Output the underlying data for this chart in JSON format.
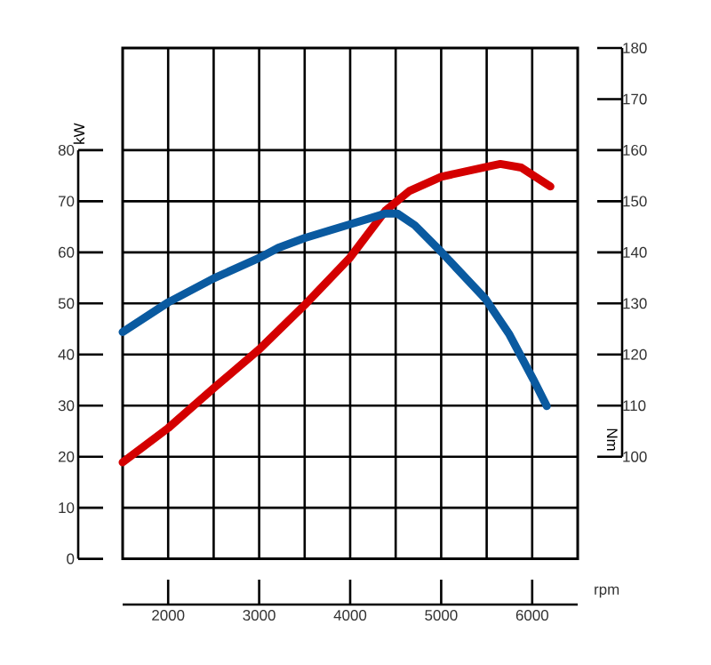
{
  "chart_data": {
    "type": "line",
    "xlabel": "rpm",
    "ylabel": "kW",
    "y2label": "Nm",
    "xlim": [
      1500,
      6500
    ],
    "xticks": [
      2000,
      3000,
      4000,
      5000,
      6000
    ],
    "ylim": [
      0,
      100
    ],
    "yticks": [
      0,
      10,
      20,
      30,
      40,
      50,
      60,
      70,
      80
    ],
    "y2lim": [
      80,
      180
    ],
    "y2ticks": [
      100,
      110,
      120,
      130,
      140,
      150,
      160,
      170,
      180
    ],
    "grid": true,
    "series": [
      {
        "color": "#d40000",
        "x": [
          1500,
          2000,
          2500,
          3000,
          3500,
          4000,
          4390,
          4650,
          5000,
          5490,
          5650,
          5880,
          6200
        ],
        "values": [
          18.9,
          25.6,
          33.4,
          41,
          49.7,
          59,
          68.2,
          72,
          74.8,
          76.7,
          77.3,
          76.6,
          72.9
        ]
      },
      {
        "color": "#0a5aa0",
        "axis": "y2",
        "x": [
          1500,
          2000,
          2500,
          3000,
          3210,
          3500,
          4000,
          4390,
          4520,
          4710,
          5000,
          5490,
          5750,
          6010,
          6160
        ],
        "values": [
          124.4,
          130.2,
          134.9,
          138.9,
          140.9,
          142.8,
          145.5,
          147.6,
          147.6,
          145.3,
          140.1,
          130.8,
          123.9,
          115.2,
          109.9
        ]
      }
    ]
  }
}
